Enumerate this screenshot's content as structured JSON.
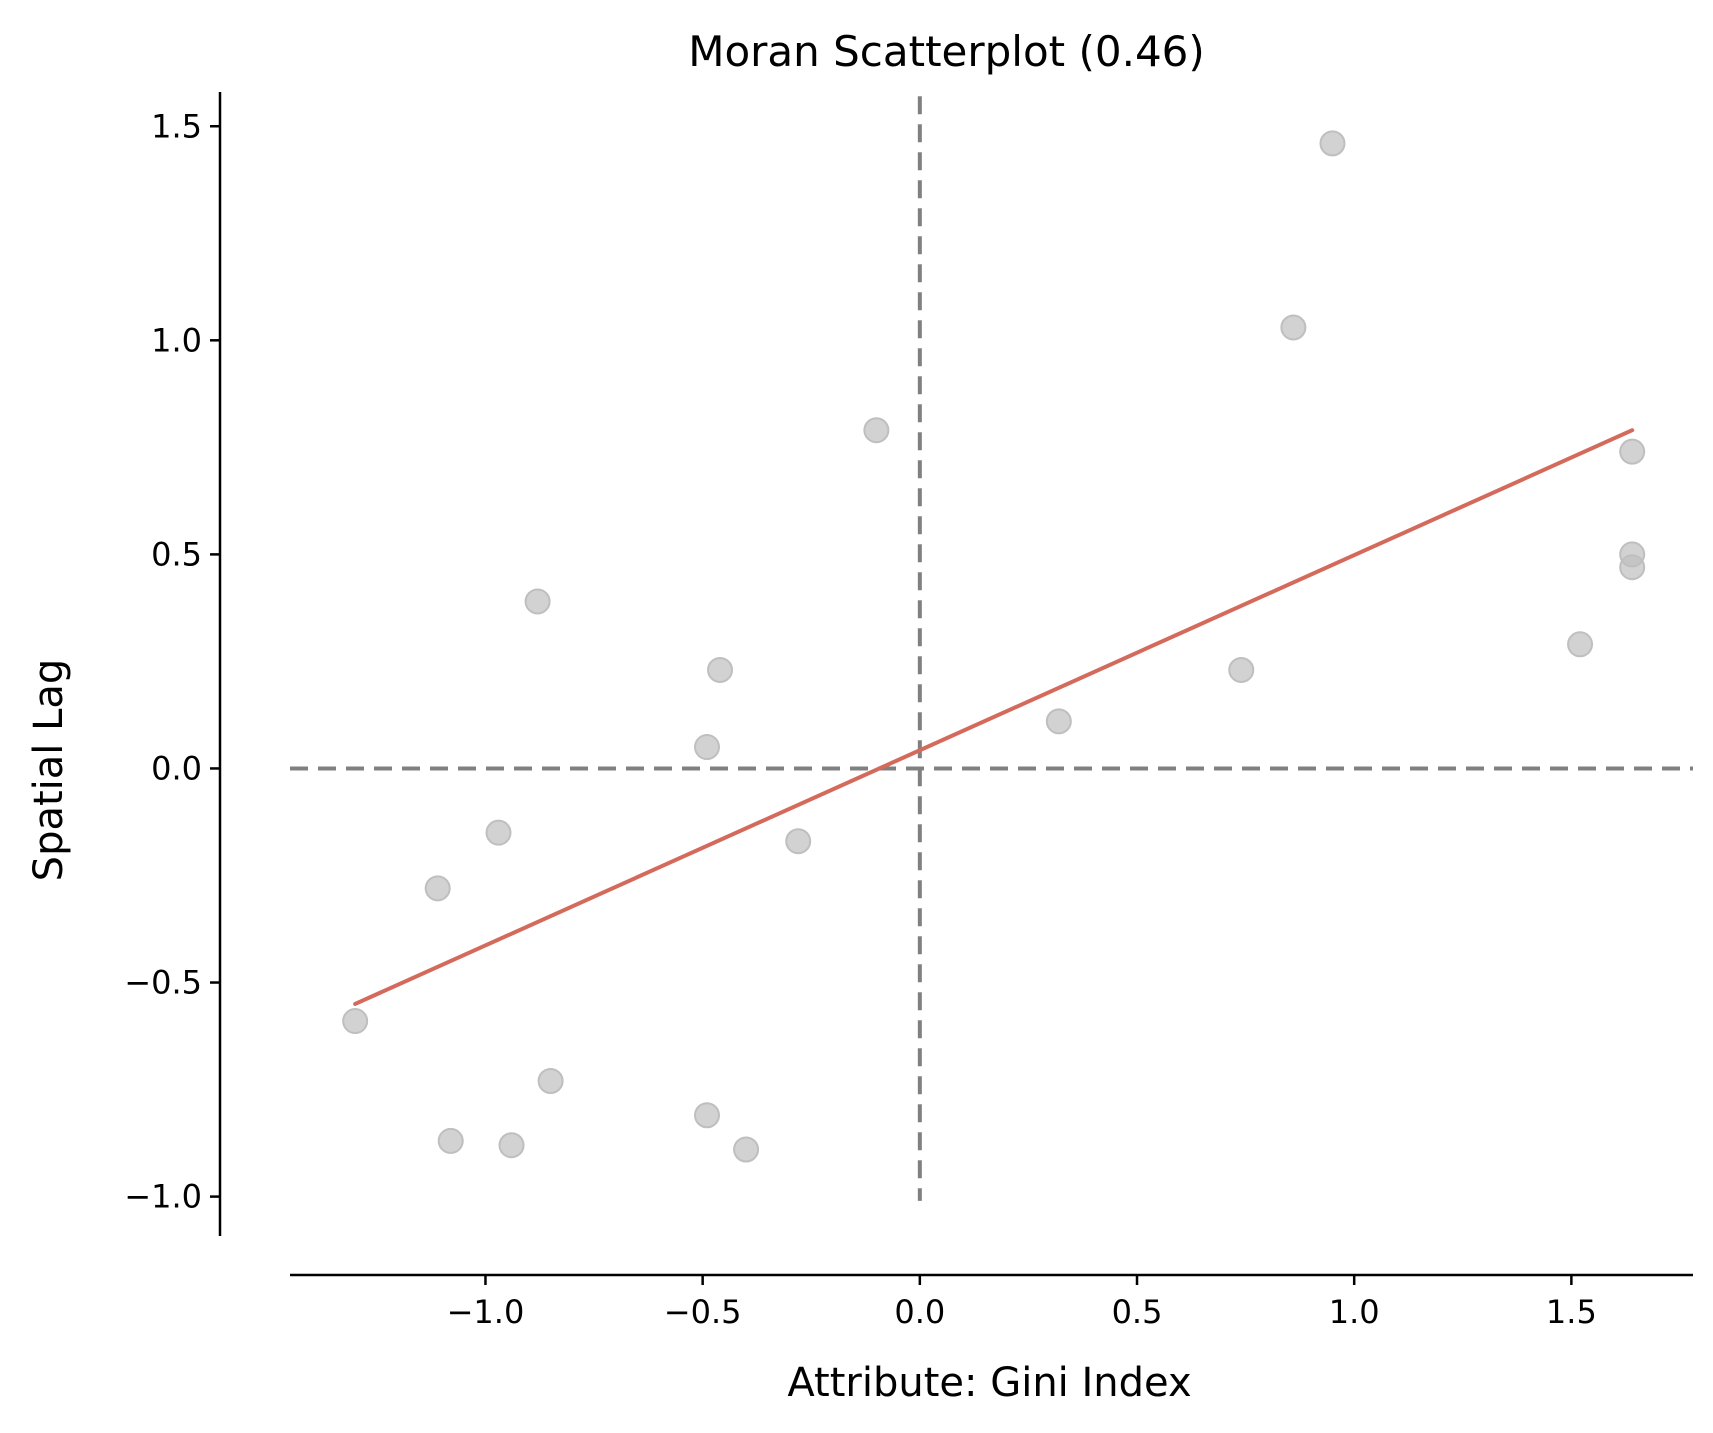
{
  "chart_data": {
    "type": "scatter",
    "title": "Moran Scatterplot (0.46)",
    "xlabel": "Attribute: Gini Index",
    "ylabel": "Spatial Lag",
    "xlim": [
      -1.45,
      1.78
    ],
    "ylim": [
      -1.05,
      1.58
    ],
    "x_ticks": [
      -1.0,
      -0.5,
      0.0,
      0.5,
      1.0,
      1.5
    ],
    "y_ticks": [
      -1.0,
      -0.5,
      0.0,
      0.5,
      1.0,
      1.5
    ],
    "x_tick_labels": [
      "−1.0",
      "−0.5",
      "0.0",
      "0.5",
      "1.0",
      "1.5"
    ],
    "y_tick_labels": [
      "−1.0",
      "−0.5",
      "0.0",
      "0.5",
      "1.0",
      "1.5"
    ],
    "grid": false,
    "points": {
      "color": "#bfbfbf",
      "x": [
        -1.3,
        -1.11,
        -1.08,
        -0.97,
        -0.94,
        -0.88,
        -0.85,
        -0.49,
        -0.49,
        -0.46,
        -0.4,
        -0.28,
        -0.1,
        0.32,
        0.74,
        0.86,
        0.95,
        1.52,
        1.64,
        1.64,
        1.64
      ],
      "y": [
        -0.59,
        -0.28,
        -0.87,
        -0.15,
        -0.88,
        0.39,
        -0.73,
        -0.81,
        0.05,
        0.23,
        -0.89,
        -0.17,
        0.79,
        0.11,
        0.23,
        1.03,
        1.46,
        0.29,
        0.74,
        0.5,
        0.47
      ]
    },
    "fit_line": {
      "color": "#d46a5c",
      "slope": 0.46,
      "x": [
        -1.3,
        1.64
      ],
      "y": [
        -0.55,
        0.79
      ]
    },
    "reference_lines": {
      "color": "#808080",
      "x": 0.0,
      "y": 0.0
    }
  }
}
